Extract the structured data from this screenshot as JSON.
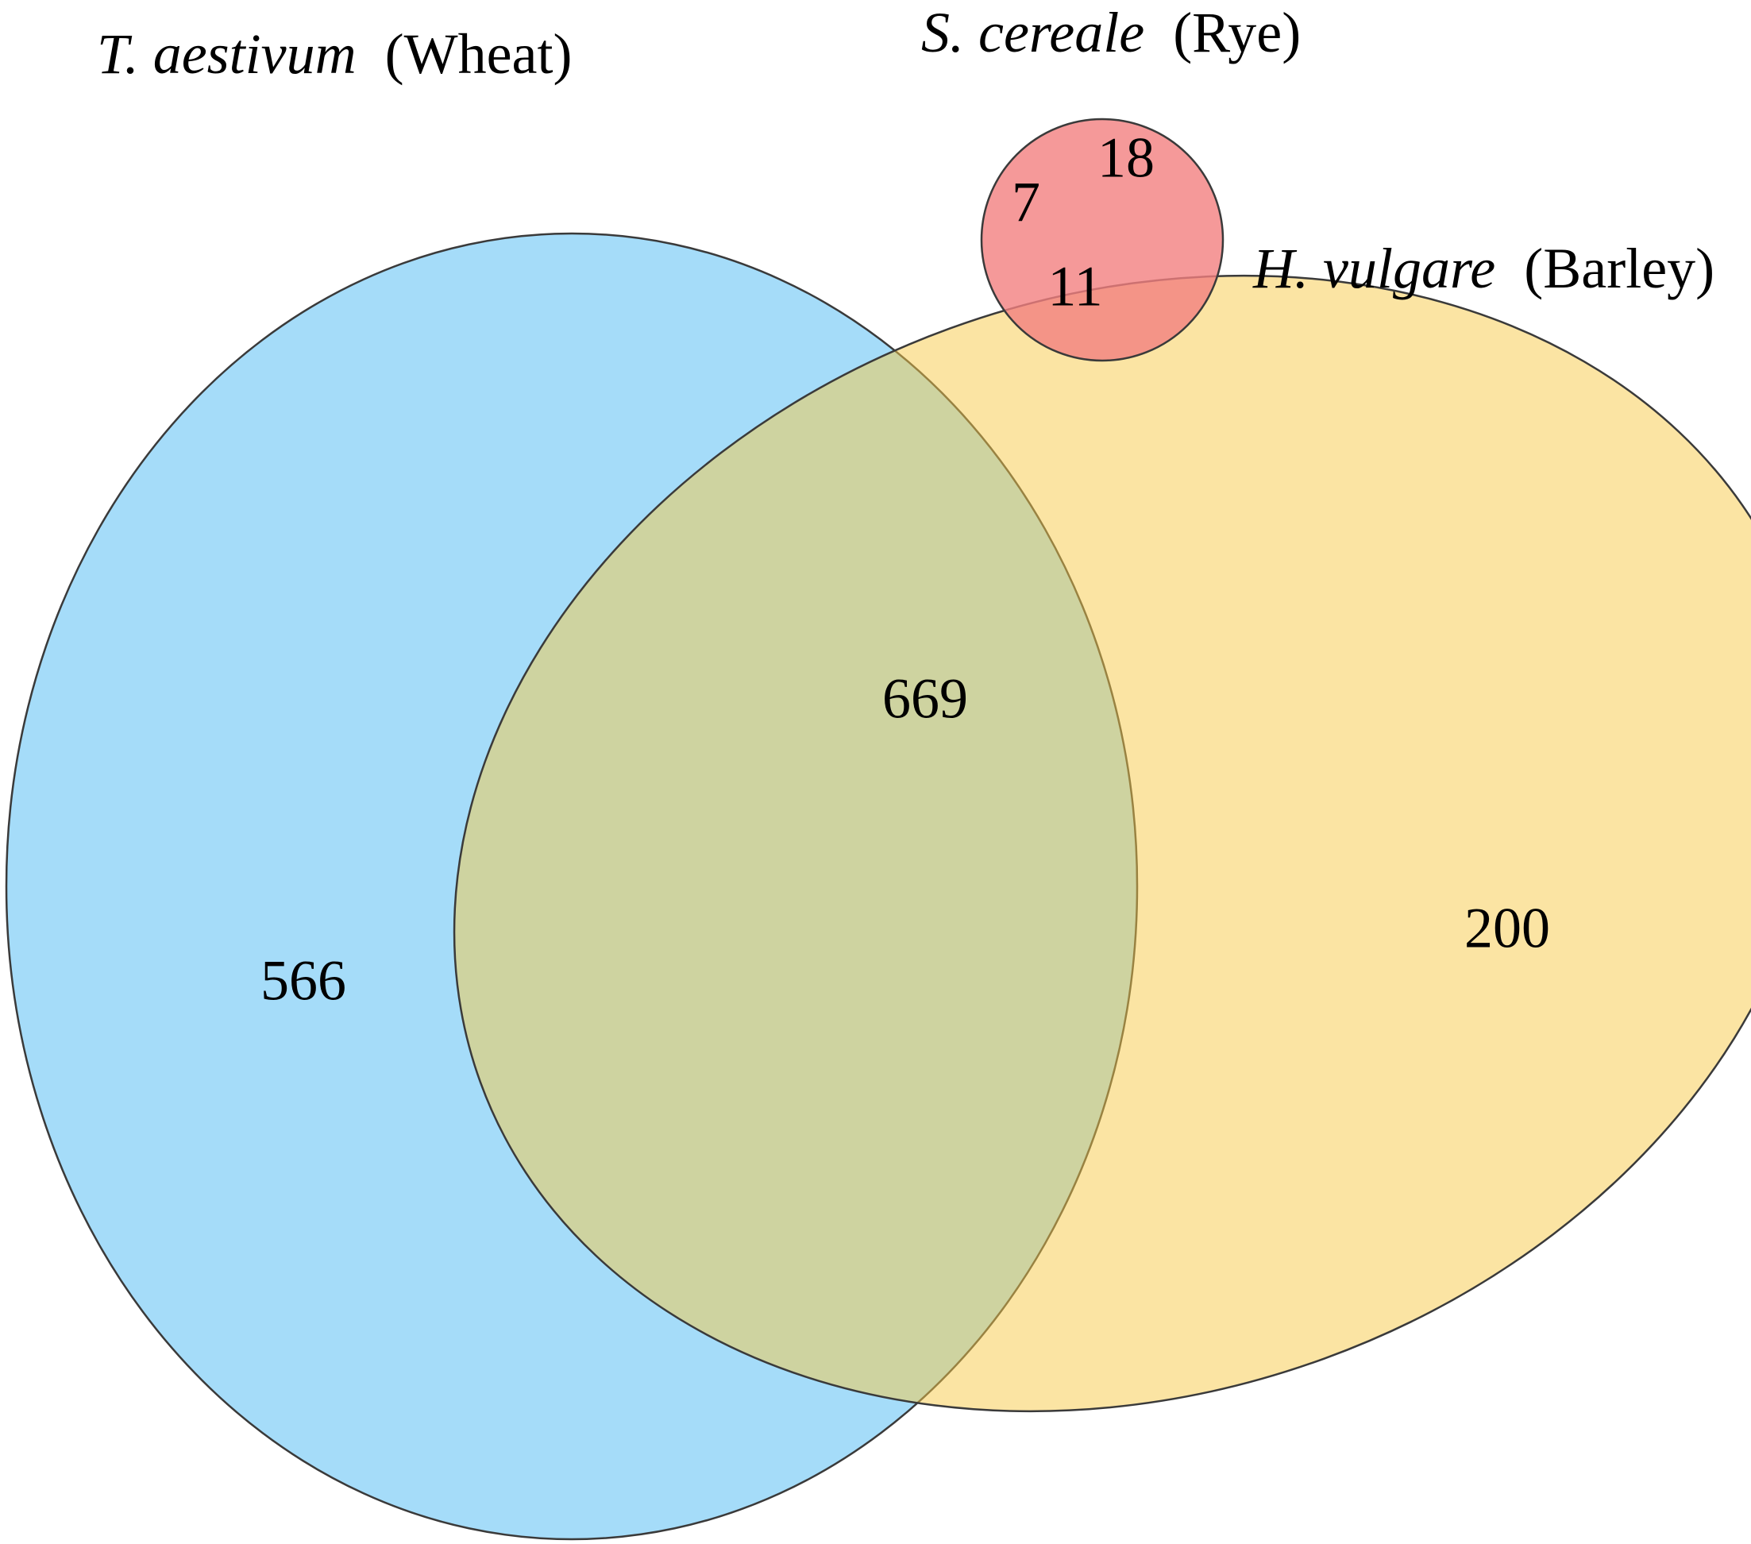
{
  "diagram": {
    "type": "venn",
    "sets": [
      {
        "id": "wheat",
        "name_italic": "T. aestivum",
        "name_common": "(Wheat)",
        "color": "#7fcdf6",
        "opacity": 0.7
      },
      {
        "id": "rye",
        "name_italic": "S. cereale",
        "name_common": "(Rye)",
        "color": "#f27f7f",
        "opacity": 0.8
      },
      {
        "id": "barley",
        "name_italic": "H. vulgare",
        "name_common": "(Barley)",
        "color": "#f7c948",
        "opacity": 0.5
      }
    ],
    "regions": [
      {
        "id": "wheat-only",
        "sets": [
          "wheat"
        ],
        "count": "566"
      },
      {
        "id": "rye-only",
        "sets": [
          "rye"
        ],
        "count": "18"
      },
      {
        "id": "barley-only",
        "sets": [
          "barley"
        ],
        "count": "200"
      },
      {
        "id": "wheat-barley",
        "sets": [
          "wheat",
          "barley"
        ],
        "count": "669"
      },
      {
        "id": "wheat-rye",
        "sets": [
          "wheat",
          "rye"
        ],
        "count": "7"
      },
      {
        "id": "rye-wheat-barley",
        "sets": [
          "rye",
          "wheat",
          "barley"
        ],
        "count": "11"
      }
    ],
    "stroke_color": "#3a3a3a"
  }
}
